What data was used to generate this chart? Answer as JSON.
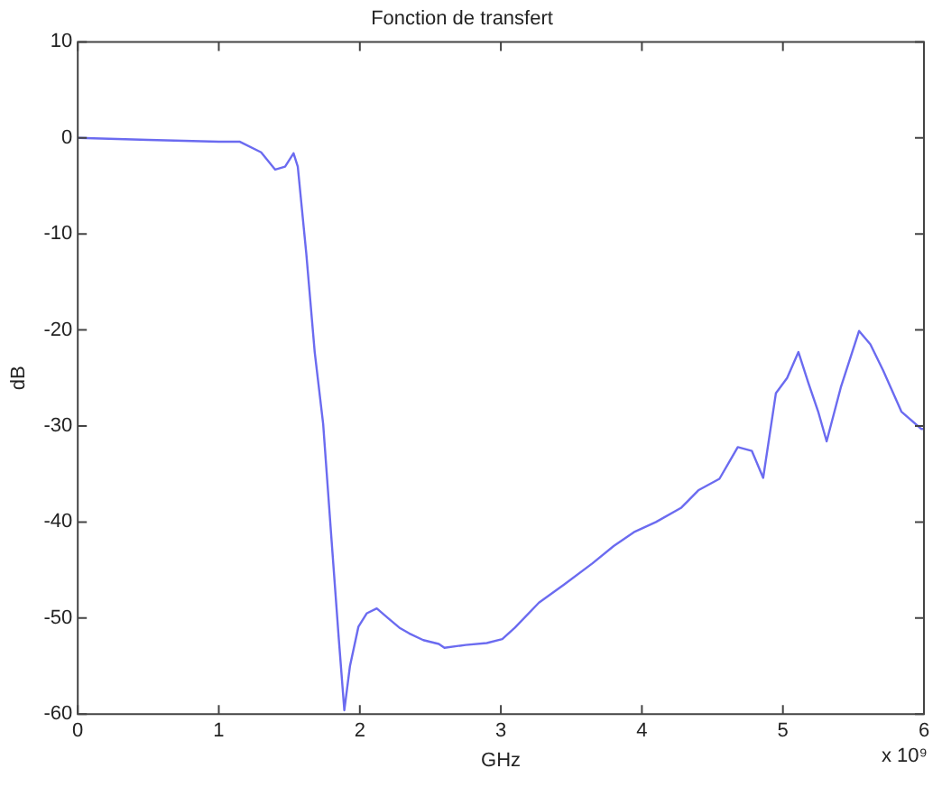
{
  "chart_data": {
    "type": "line",
    "title": "Fonction de transfert",
    "xlabel": "GHz",
    "ylabel": "dB",
    "annotations": [
      "x 10⁹"
    ],
    "x": [
      0,
      0.5,
      1.0,
      1.15,
      1.3,
      1.4,
      1.47,
      1.53,
      1.56,
      1.62,
      1.68,
      1.74,
      1.8,
      1.85,
      1.89,
      1.93,
      1.99,
      2.05,
      2.12,
      2.2,
      2.28,
      2.35,
      2.45,
      2.56,
      2.6,
      2.75,
      2.9,
      3.01,
      3.1,
      3.27,
      3.45,
      3.65,
      3.8,
      3.95,
      4.1,
      4.28,
      4.4,
      4.55,
      4.68,
      4.78,
      4.86,
      4.95,
      5.03,
      5.11,
      5.18,
      5.25,
      5.31,
      5.41,
      5.54,
      5.62,
      5.71,
      5.84,
      5.98,
      6
    ],
    "series": [
      {
        "color": "#6b6bf0",
        "values": [
          0,
          -0.2,
          -0.4,
          -0.4,
          -1.5,
          -3.3,
          -3,
          -1.6,
          -3,
          -12,
          -22.3,
          -29.8,
          -42,
          -52,
          -59.6,
          -55,
          -50.9,
          -49.5,
          -49,
          -50,
          -51,
          -51.6,
          -52.3,
          -52.7,
          -53.1,
          -52.8,
          -52.6,
          -52.2,
          -51,
          -48.4,
          -46.5,
          -44.3,
          -42.5,
          -41,
          -40,
          -38.5,
          -36.7,
          -35.5,
          -32.2,
          -32.6,
          -35.4,
          -26.6,
          -25,
          -22.3,
          -25.5,
          -28.5,
          -31.6,
          -26,
          -20.1,
          -21.5,
          -24.2,
          -28.5,
          -30.3,
          -30.3
        ]
      }
    ],
    "xlim": [
      0,
      6
    ],
    "xticks": [
      0,
      1,
      2,
      3,
      4,
      5,
      6
    ],
    "ylim": [
      -60,
      10
    ],
    "yticks": [
      -60,
      -50,
      -40,
      -30,
      -20,
      -10,
      0,
      10
    ],
    "grid": false,
    "legend": false,
    "marker": "none",
    "line_style": "solid"
  }
}
